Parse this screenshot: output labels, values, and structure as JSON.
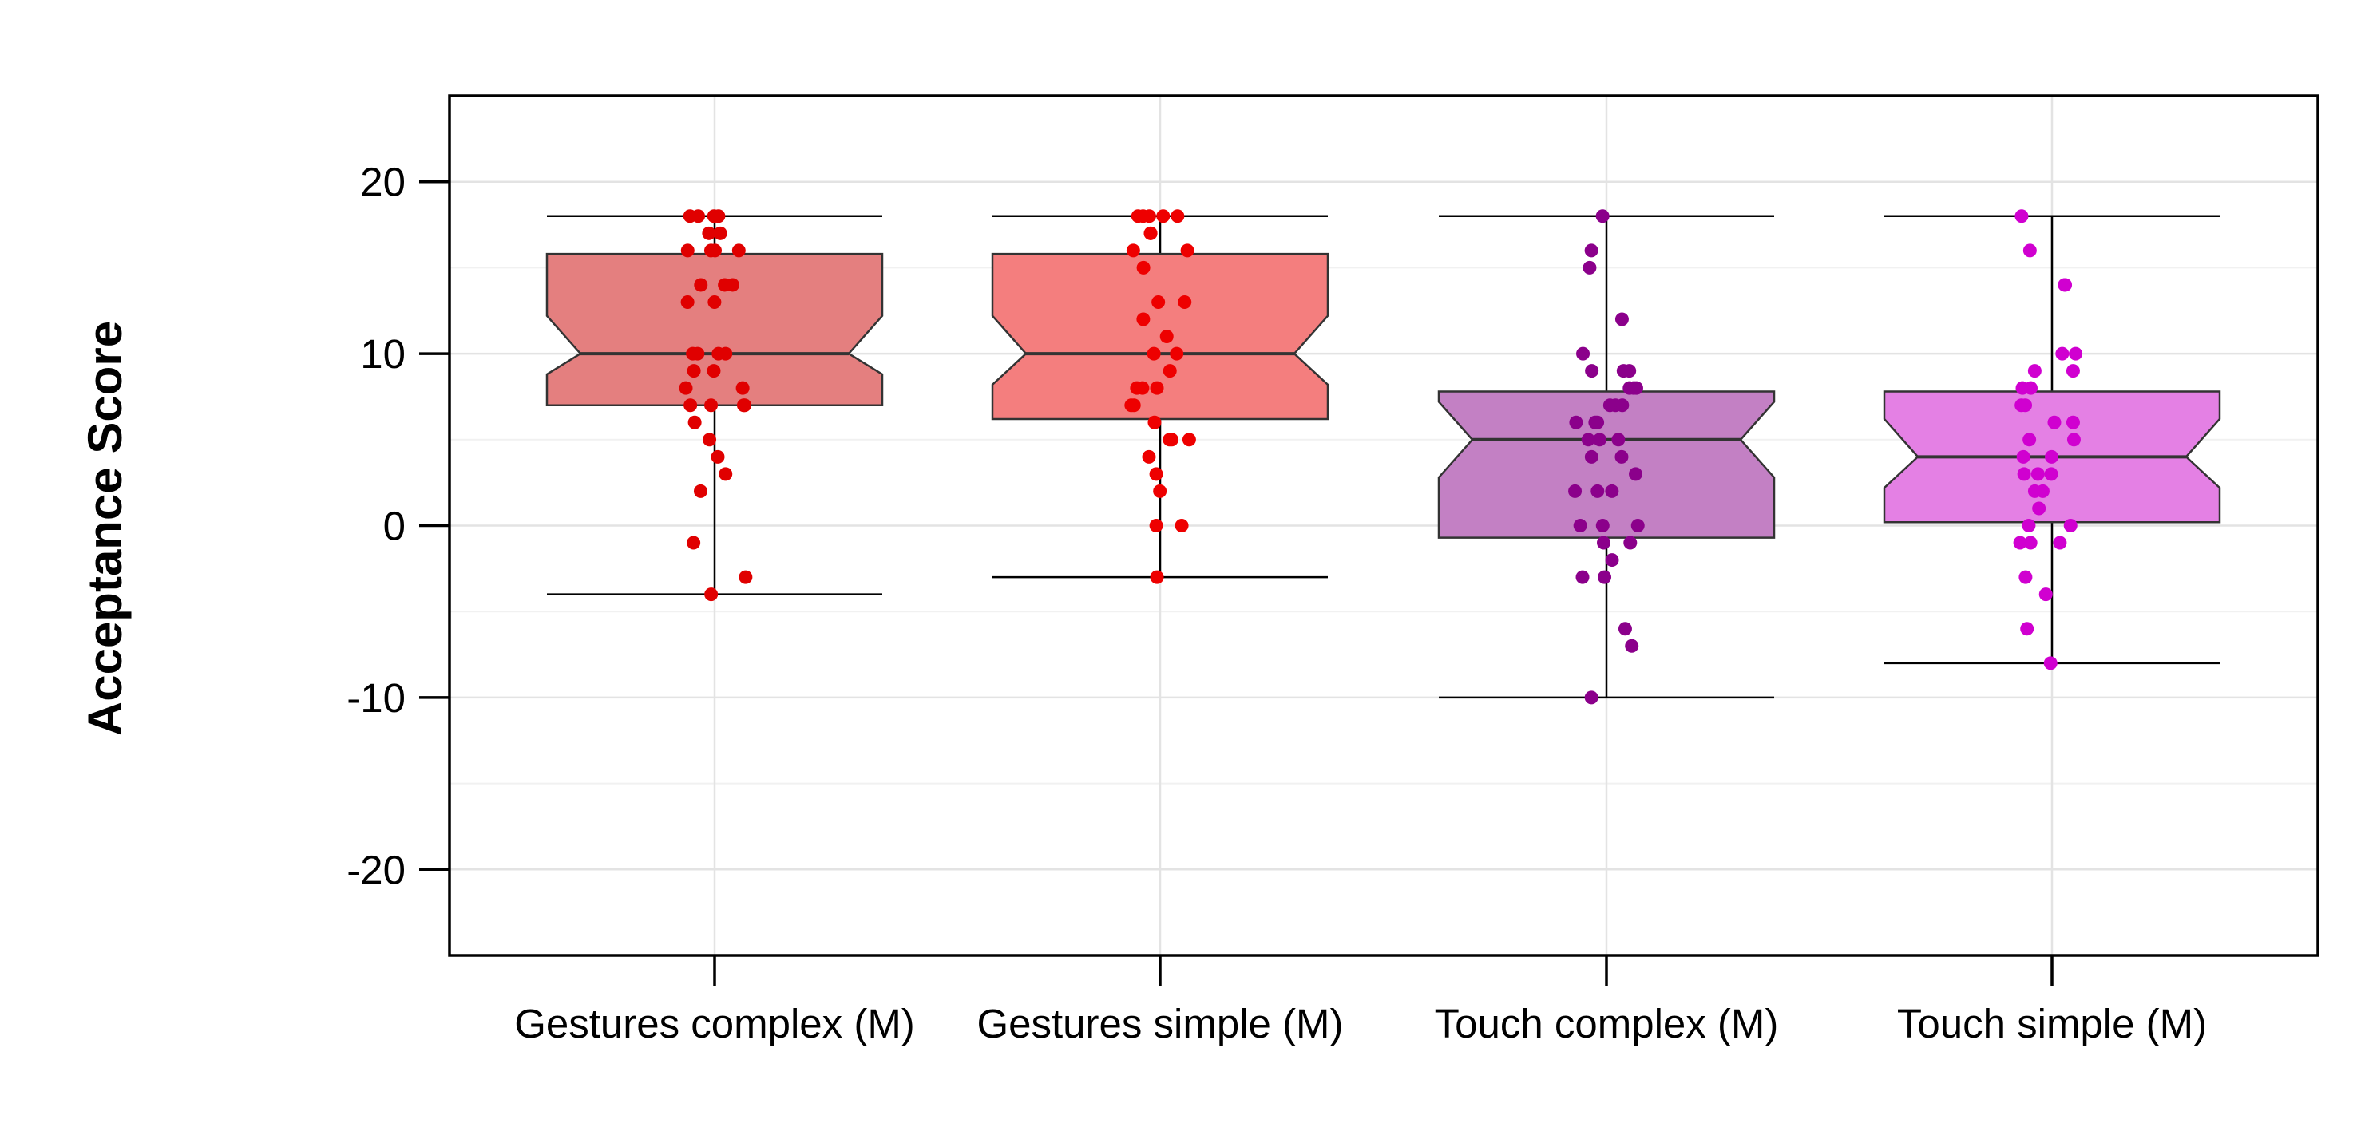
{
  "chart_data": {
    "type": "boxplot",
    "title": "",
    "xlabel": "",
    "ylabel": "Acceptance Score",
    "ylim": [
      -25,
      25
    ],
    "yticks": [
      -20,
      -10,
      0,
      10,
      20
    ],
    "ytick_labels": [
      "-20",
      "-10",
      "0",
      "10",
      "20"
    ],
    "grid": true,
    "notched": true,
    "categories": [
      "Gestures complex (M)",
      "Gestures simple (M)",
      "Touch complex (M)",
      "Touch simple (M)"
    ],
    "boxes": [
      {
        "name": "Gestures complex (M)",
        "whisker_low": -4,
        "q1": 7,
        "notch_low": 8.8,
        "median": 10,
        "notch_high": 12.2,
        "q3": 15.8,
        "whisker_high": 18,
        "fill": "#e47f7f",
        "point_color": "#e00000",
        "points": [
          18,
          18,
          18,
          18,
          16,
          16,
          16,
          16,
          17,
          17,
          14,
          14,
          14,
          13,
          13,
          10,
          10,
          10,
          10,
          9,
          9,
          8,
          8,
          7,
          7,
          7,
          7,
          6,
          5,
          4,
          3,
          2,
          -1,
          -3,
          -4
        ]
      },
      {
        "name": "Gestures simple (M)",
        "whisker_low": -3,
        "q1": 6.2,
        "notch_low": 8.2,
        "median": 10,
        "notch_high": 12.2,
        "q3": 15.8,
        "whisker_high": 18,
        "fill": "#f47e7e",
        "point_color": "#ee0000",
        "points": [
          18,
          18,
          18,
          18,
          18,
          17,
          17,
          16,
          16,
          15,
          13,
          13,
          12,
          11,
          10,
          10,
          9,
          8,
          8,
          8,
          7,
          7,
          6,
          5,
          5,
          5,
          4,
          3,
          2,
          0,
          0,
          -3
        ]
      },
      {
        "name": "Touch complex (M)",
        "whisker_low": -10,
        "q1": -0.7,
        "notch_low": 2.8,
        "median": 5,
        "notch_high": 7.2,
        "q3": 7.8,
        "whisker_high": 18,
        "fill": "#c380c4",
        "point_color": "#8b008b",
        "points": [
          18,
          16,
          15,
          12,
          10,
          9,
          9,
          9,
          8,
          8,
          8,
          7,
          7,
          7,
          6,
          6,
          6,
          5,
          5,
          5,
          4,
          4,
          3,
          2,
          2,
          2,
          0,
          0,
          0,
          -1,
          -1,
          -2,
          -3,
          -3,
          -6,
          -7,
          -10
        ]
      },
      {
        "name": "Touch simple (M)",
        "whisker_low": -8,
        "q1": 0.2,
        "notch_low": 2.2,
        "median": 4,
        "notch_high": 6.2,
        "q3": 7.8,
        "whisker_high": 18,
        "fill": "#e480e4",
        "point_color": "#d000d0",
        "points": [
          18,
          16,
          14,
          14,
          10,
          10,
          9,
          9,
          8,
          8,
          7,
          7,
          6,
          6,
          5,
          5,
          4,
          4,
          3,
          3,
          3,
          2,
          2,
          1,
          0,
          0,
          -1,
          -1,
          -1,
          -3,
          -4,
          -6,
          -8
        ]
      }
    ]
  }
}
